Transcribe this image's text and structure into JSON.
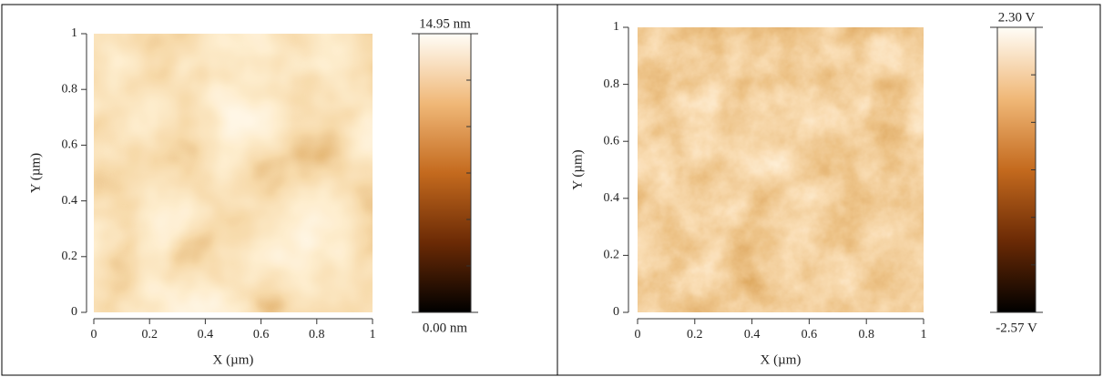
{
  "chart_data": [
    {
      "type": "heatmap",
      "x_label": "X (µm)",
      "y_label": "Y (µm)",
      "xlim": [
        0,
        1
      ],
      "ylim": [
        0,
        1
      ],
      "xticks": [
        0,
        0.2,
        0.4,
        0.6,
        0.8,
        1
      ],
      "yticks": [
        0,
        0.2,
        0.4,
        0.6,
        0.8,
        1
      ],
      "colorbar": {
        "lim": [
          0,
          14.95
        ],
        "ticks": [
          {
            "value": 14.95,
            "label": "14.95 nm"
          },
          {
            "value": 0,
            "label": "0.00 nm"
          }
        ]
      }
    },
    {
      "type": "heatmap",
      "x_label": "X (µm)",
      "y_label": "Y (µm)",
      "xlim": [
        0,
        1
      ],
      "ylim": [
        0,
        1
      ],
      "xticks": [
        0,
        0.2,
        0.4,
        0.6,
        0.8,
        1
      ],
      "yticks": [
        0,
        0.2,
        0.4,
        0.6,
        0.8,
        1
      ],
      "colorbar": {
        "lim": [
          -2.57,
          2.3
        ],
        "ticks": [
          {
            "value": 2.3,
            "label": "2.30 V"
          },
          {
            "value": -2.57,
            "label": "-2.57 V"
          }
        ]
      }
    }
  ]
}
